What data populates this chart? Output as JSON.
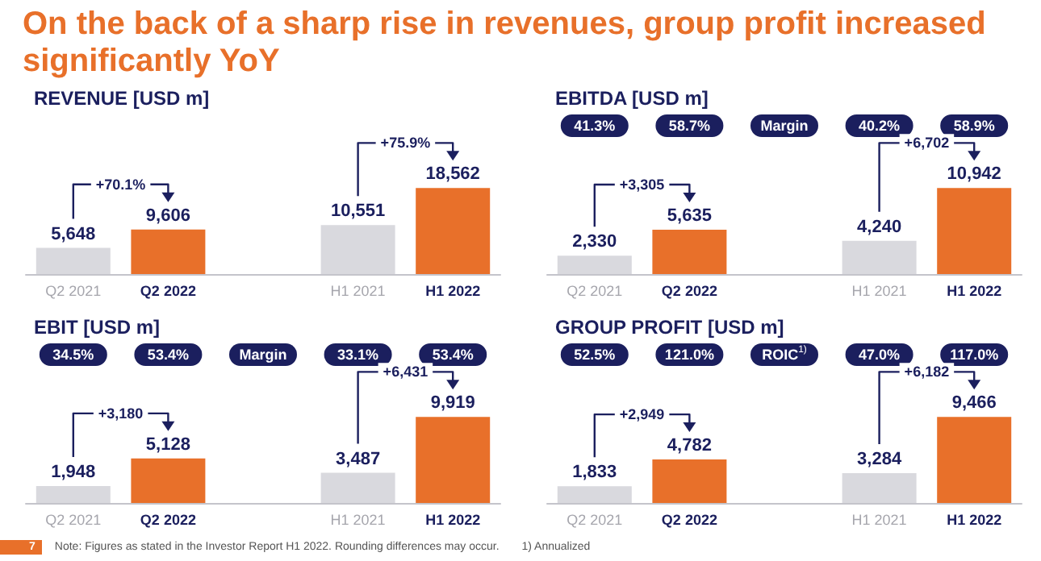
{
  "chart_data": [
    {
      "type": "other",
      "title": "On the back of a sharp rise in revenues, group profit increased significantly YoY",
      "annotations": [
        "7",
        "Note: Figures as stated in the Investor Report H1 2022. Rounding differences may occur.",
        "1) Annualized"
      ]
    },
    {
      "type": "bar",
      "title": "REVENUE [USD m]",
      "categories": [
        "Q2 2021",
        "Q2 2022",
        null,
        "H1 2021",
        "H1 2022"
      ],
      "values": [
        5648,
        9606,
        null,
        10551,
        18562
      ],
      "value_labels": [
        "5,648",
        "9,606",
        null,
        "10,551",
        "18,562"
      ],
      "colors": [
        "#d9d9de",
        "#e8702a",
        "#d9d9de",
        "#d9d9de",
        "#e8702a"
      ],
      "annotations": [
        "+70.1%",
        "+75.9%"
      ]
    },
    {
      "type": "bar",
      "title": "EBITDA [USD m]",
      "categories": [
        "Q2 2021",
        "Q2 2022",
        null,
        "H1 2021",
        "H1 2022"
      ],
      "values": [
        2330,
        5635,
        null,
        4240,
        10942
      ],
      "value_labels": [
        "2,330",
        "5,635",
        null,
        "4,240",
        "10,942"
      ],
      "colors": [
        "#d9d9de",
        "#e8702a",
        "#d9d9de",
        "#d9d9de",
        "#e8702a"
      ],
      "annotations": [
        "41.3%",
        "58.7%",
        "Margin",
        "40.2%",
        "58.9%",
        "+3,305",
        "+6,702"
      ]
    },
    {
      "type": "bar",
      "title": "EBIT [USD m]",
      "categories": [
        "Q2 2021",
        "Q2 2022",
        null,
        "H1 2021",
        "H1 2022"
      ],
      "values": [
        1948,
        5128,
        null,
        3487,
        9919
      ],
      "value_labels": [
        "1,948",
        "5,128",
        null,
        "3,487",
        "9,919"
      ],
      "colors": [
        "#d9d9de",
        "#e8702a",
        "#d9d9de",
        "#d9d9de",
        "#e8702a"
      ],
      "annotations": [
        "34.5%",
        "53.4%",
        "Margin",
        "33.1%",
        "53.4%",
        "+3,180",
        "+6,431"
      ]
    },
    {
      "type": "bar",
      "title": "GROUP PROFIT [USD m]",
      "categories": [
        "Q2 2021",
        "Q2 2022",
        null,
        "H1 2021",
        "H1 2022"
      ],
      "values": [
        1833,
        4782,
        null,
        3284,
        9466
      ],
      "value_labels": [
        "1,833",
        "4,782",
        null,
        "3,284",
        "9,466"
      ],
      "colors": [
        "#d9d9de",
        "#e8702a",
        "#d9d9de",
        "#d9d9de",
        "#e8702a"
      ],
      "annotations": [
        "52.5%",
        "121.0%",
        "ROIC$^{1)}$",
        "47.0%",
        "117.0%",
        "+2,949",
        "+6,182"
      ]
    }
  ]
}
